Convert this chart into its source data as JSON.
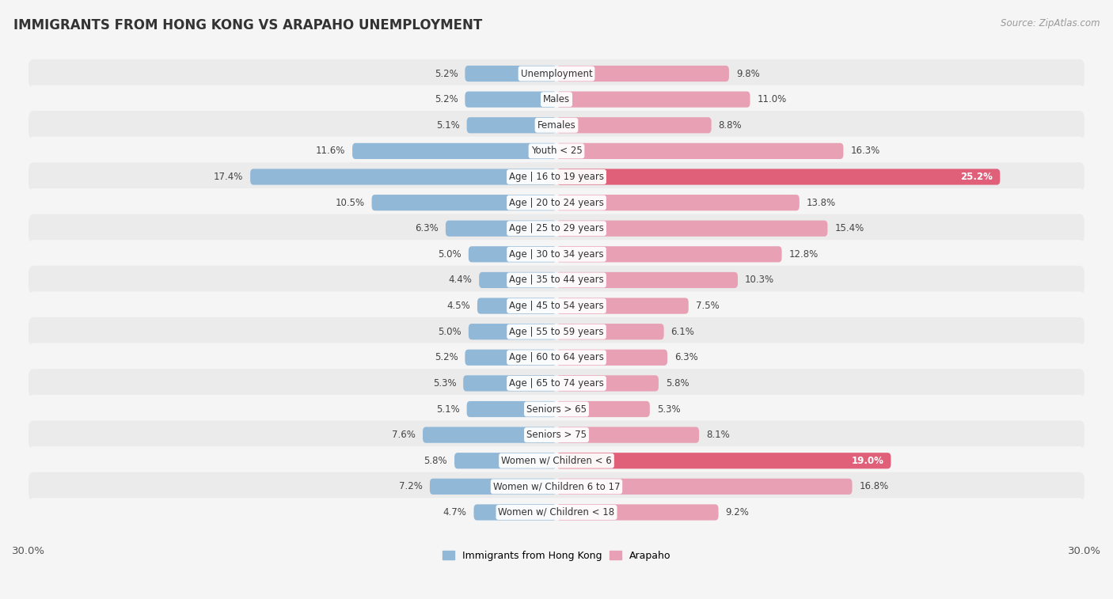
{
  "title": "IMMIGRANTS FROM HONG KONG VS ARAPAHO UNEMPLOYMENT",
  "source": "Source: ZipAtlas.com",
  "categories": [
    "Unemployment",
    "Males",
    "Females",
    "Youth < 25",
    "Age | 16 to 19 years",
    "Age | 20 to 24 years",
    "Age | 25 to 29 years",
    "Age | 30 to 34 years",
    "Age | 35 to 44 years",
    "Age | 45 to 54 years",
    "Age | 55 to 59 years",
    "Age | 60 to 64 years",
    "Age | 65 to 74 years",
    "Seniors > 65",
    "Seniors > 75",
    "Women w/ Children < 6",
    "Women w/ Children 6 to 17",
    "Women w/ Children < 18"
  ],
  "hk_values": [
    5.2,
    5.2,
    5.1,
    11.6,
    17.4,
    10.5,
    6.3,
    5.0,
    4.4,
    4.5,
    5.0,
    5.2,
    5.3,
    5.1,
    7.6,
    5.8,
    7.2,
    4.7
  ],
  "arapaho_values": [
    9.8,
    11.0,
    8.8,
    16.3,
    25.2,
    13.8,
    15.4,
    12.8,
    10.3,
    7.5,
    6.1,
    6.3,
    5.8,
    5.3,
    8.1,
    19.0,
    16.8,
    9.2
  ],
  "hk_color": "#92b8d8",
  "arapaho_color": "#e8a0b4",
  "arapaho_highlight": "#e0607a",
  "axis_max": 30.0,
  "row_colors": [
    "#ebebeb",
    "#f5f5f5"
  ],
  "bg_color": "#f5f5f5",
  "legend_hk": "Immigrants from Hong Kong",
  "legend_arapaho": "Arapaho",
  "label_fontsize": 8.5,
  "value_fontsize": 8.5,
  "title_fontsize": 12,
  "source_fontsize": 8.5
}
